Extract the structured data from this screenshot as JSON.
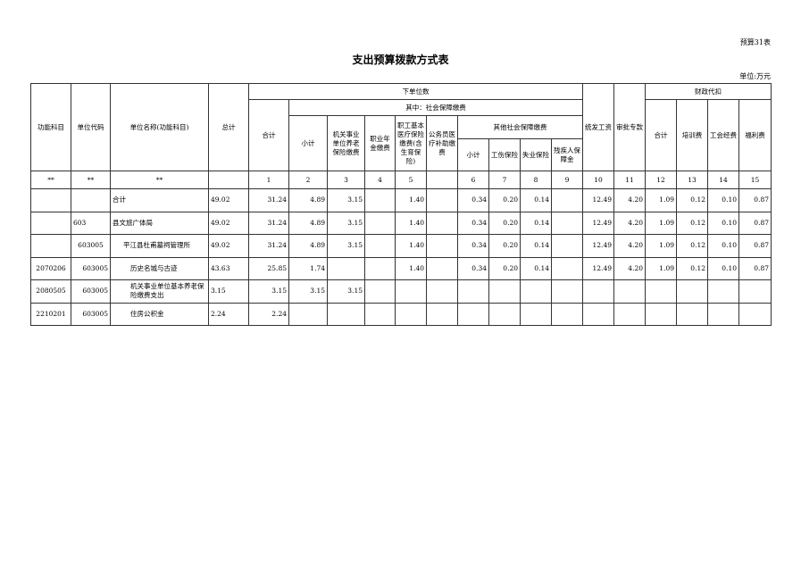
{
  "form_tag": "预算31表",
  "title": "支出预算拨款方式表",
  "unit": "单位:万元",
  "headers": {
    "func": "功能科目",
    "code": "单位代码",
    "name": "单位名称(功能科目)",
    "total": "总计",
    "sub_units": "下单位数",
    "sub_total": "合计",
    "of_which": "其中：社会保障缴费",
    "ss_subtotal": "小计",
    "pension": "机关事业单位养老保险缴费",
    "annuity": "职业年金缴费",
    "medical": "职工基本医疗保险缴费(含生育保险)",
    "civil_medical": "公务员医疗补助缴费",
    "other_ss": "其他社会保障缴费",
    "other_subtotal": "小计",
    "injury": "工伤保险",
    "unemployment": "失业保险",
    "disability": "残疾人保障金",
    "unified_salary": "统发工资",
    "approved_funds": "审批专款",
    "fiscal_deduct": "财政代扣",
    "fd_total": "合计",
    "training": "培训费",
    "union": "工会经费",
    "welfare": "福利费"
  },
  "index_row": [
    "**",
    "**",
    "**",
    "",
    "1",
    "2",
    "3",
    "4",
    "5",
    "",
    "6",
    "7",
    "8",
    "9",
    "10",
    "11",
    "12",
    "13",
    "14",
    "15"
  ],
  "rows": [
    [
      "",
      "",
      "合计",
      "49.02",
      "31.24",
      "4.89",
      "3.15",
      "",
      "1.40",
      "",
      "0.34",
      "0.20",
      "0.14",
      "",
      "12.49",
      "4.20",
      "1.09",
      "0.12",
      "0.10",
      "0.87"
    ],
    [
      "",
      "603",
      "县文旅广体局",
      "49.02",
      "31.24",
      "4.89",
      "3.15",
      "",
      "1.40",
      "",
      "0.34",
      "0.20",
      "0.14",
      "",
      "12.49",
      "4.20",
      "1.09",
      "0.12",
      "0.10",
      "0.87"
    ],
    [
      "",
      "603005",
      "平江县杜甫墓祠管理所",
      "49.02",
      "31.24",
      "4.89",
      "3.15",
      "",
      "1.40",
      "",
      "0.34",
      "0.20",
      "0.14",
      "",
      "12.49",
      "4.20",
      "1.09",
      "0.12",
      "0.10",
      "0.87"
    ],
    [
      "2070206",
      "603005",
      "历史名城与古迹",
      "43.63",
      "25.85",
      "1.74",
      "",
      "",
      "1.40",
      "",
      "0.34",
      "0.20",
      "0.14",
      "",
      "12.49",
      "4.20",
      "1.09",
      "0.12",
      "0.10",
      "0.87"
    ],
    [
      "2080505",
      "603005",
      "机关事业单位基本养老保险缴费支出",
      "3.15",
      "3.15",
      "3.15",
      "3.15",
      "",
      "",
      "",
      "",
      "",
      "",
      "",
      "",
      "",
      "",
      "",
      "",
      ""
    ],
    [
      "2210201",
      "603005",
      "住房公积金",
      "2.24",
      "2.24",
      "",
      "",
      "",
      "",
      "",
      "",
      "",
      "",
      "",
      "",
      "",
      "",
      "",
      "",
      ""
    ]
  ]
}
